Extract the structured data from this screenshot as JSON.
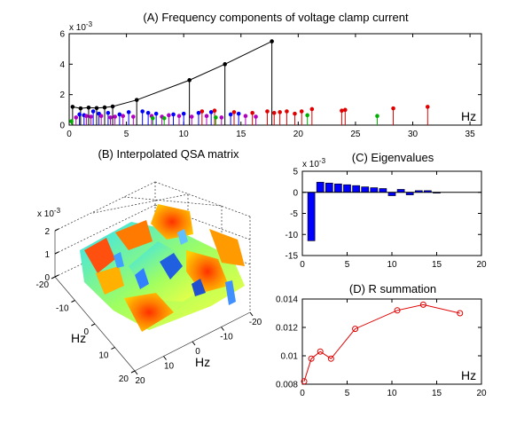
{
  "figure": {
    "panels": [
      "A",
      "B",
      "C",
      "D"
    ]
  },
  "chart_data": [
    {
      "id": "A",
      "type": "stem",
      "title": "(A) Frequency components of voltage clamp current",
      "xlabel": "Hz",
      "exponent_label": "x 10",
      "exponent_power": "-3",
      "xlim": [
        0,
        36
      ],
      "ylim": [
        0,
        6
      ],
      "xticks": [
        "0",
        "5",
        "10",
        "15",
        "20",
        "25",
        "30",
        "35"
      ],
      "yticks": [
        "0",
        "2",
        "4",
        "6"
      ],
      "colors": {
        "black": "#000000",
        "blue": "#0000ff",
        "magenta": "#b000c0",
        "red": "#e00000",
        "green": "#00b000"
      },
      "series": [
        {
          "name": "envelope",
          "color": "black",
          "x": [
            0.3,
            1.0,
            1.7,
            2.4,
            3.1,
            3.8,
            5.9,
            10.5,
            13.6,
            17.7
          ],
          "y": [
            1.2,
            1.1,
            1.15,
            1.12,
            1.16,
            1.22,
            1.65,
            2.95,
            4.0,
            5.5
          ]
        },
        {
          "name": "blue",
          "color": "blue",
          "x": [
            0.9,
            1.3,
            2.1,
            2.6,
            3.4,
            4.4,
            5.2,
            6.4,
            6.9,
            7.6,
            9.1,
            10.0,
            11.3,
            12.4,
            14.1,
            14.8
          ],
          "y": [
            0.7,
            0.65,
            0.9,
            0.75,
            0.8,
            0.7,
            0.85,
            0.9,
            0.8,
            0.75,
            0.7,
            0.75,
            0.8,
            0.85,
            0.7,
            0.75
          ]
        },
        {
          "name": "magenta",
          "color": "magenta",
          "x": [
            0.6,
            1.5,
            1.9,
            2.8,
            3.6,
            4.0,
            4.7,
            5.6,
            7.2,
            8.1,
            8.7,
            9.6,
            10.7,
            12.0,
            13.3,
            15.4,
            16.3
          ],
          "y": [
            0.5,
            0.6,
            0.55,
            0.6,
            0.5,
            0.55,
            0.6,
            0.55,
            0.6,
            0.55,
            0.65,
            0.6,
            0.55,
            0.6,
            0.5,
            0.6,
            0.55
          ]
        },
        {
          "name": "red",
          "color": "red",
          "x": [
            11.6,
            12.7,
            14.4,
            16.0,
            17.3,
            17.9,
            18.4,
            19.0,
            19.7,
            20.3,
            21.2,
            23.8,
            24.1,
            28.3,
            31.3
          ],
          "y": [
            0.9,
            0.95,
            0.85,
            0.8,
            0.9,
            0.8,
            0.85,
            0.9,
            0.75,
            0.9,
            1.05,
            0.95,
            1.0,
            1.1,
            1.2
          ]
        },
        {
          "name": "green",
          "color": "green",
          "x": [
            0.2,
            7.3,
            8.3,
            12.8,
            20.8,
            26.9
          ],
          "y": [
            0.25,
            0.45,
            0.45,
            0.5,
            0.65,
            0.6
          ]
        }
      ]
    },
    {
      "id": "B",
      "type": "surface",
      "title": "(B) Interpolated QSA matrix",
      "xlabel": "Hz",
      "ylabel": "Hz",
      "exponent_label": "x 10",
      "exponent_power": "-3",
      "zticks": [
        "0",
        "1",
        "2"
      ],
      "xticks": [
        "-20",
        "-10",
        "0",
        "10",
        "20"
      ],
      "yticks": [
        "-20",
        "-10",
        "0",
        "10",
        "20"
      ],
      "xticks_right": [
        "-20",
        "-10",
        "0",
        "10",
        "20"
      ]
    },
    {
      "id": "C",
      "type": "bar",
      "title": "(C) Eigenvalues",
      "exponent_label": "x 10",
      "exponent_power": "-3",
      "xlim": [
        0,
        20
      ],
      "ylim": [
        -15,
        5
      ],
      "xticks": [
        "0",
        "5",
        "10",
        "15",
        "20"
      ],
      "yticks": [
        "5",
        "0",
        "-5",
        "-10",
        "-15"
      ],
      "bar_color": "#0000ff",
      "x": [
        1,
        2,
        3,
        4,
        5,
        6,
        7,
        8,
        9,
        10,
        11,
        12,
        13,
        14,
        15
      ],
      "values": [
        -11.5,
        2.4,
        2.2,
        2.0,
        1.8,
        1.6,
        1.3,
        1.1,
        0.9,
        -0.8,
        0.7,
        -0.6,
        0.4,
        0.4,
        -0.2
      ]
    },
    {
      "id": "D",
      "type": "line",
      "title": "(D) R summation",
      "xlabel": "Hz",
      "xlim": [
        0,
        20
      ],
      "ylim": [
        0.008,
        0.014
      ],
      "xticks": [
        "0",
        "5",
        "10",
        "15",
        "20"
      ],
      "yticks": [
        "0.014",
        "0.012",
        "0.01",
        "0.008"
      ],
      "color": "#e00000",
      "x": [
        0.2,
        1.0,
        2.0,
        3.2,
        5.9,
        10.6,
        13.5,
        17.6
      ],
      "y": [
        0.0082,
        0.0098,
        0.0103,
        0.0098,
        0.0119,
        0.0132,
        0.0136,
        0.013
      ]
    }
  ]
}
